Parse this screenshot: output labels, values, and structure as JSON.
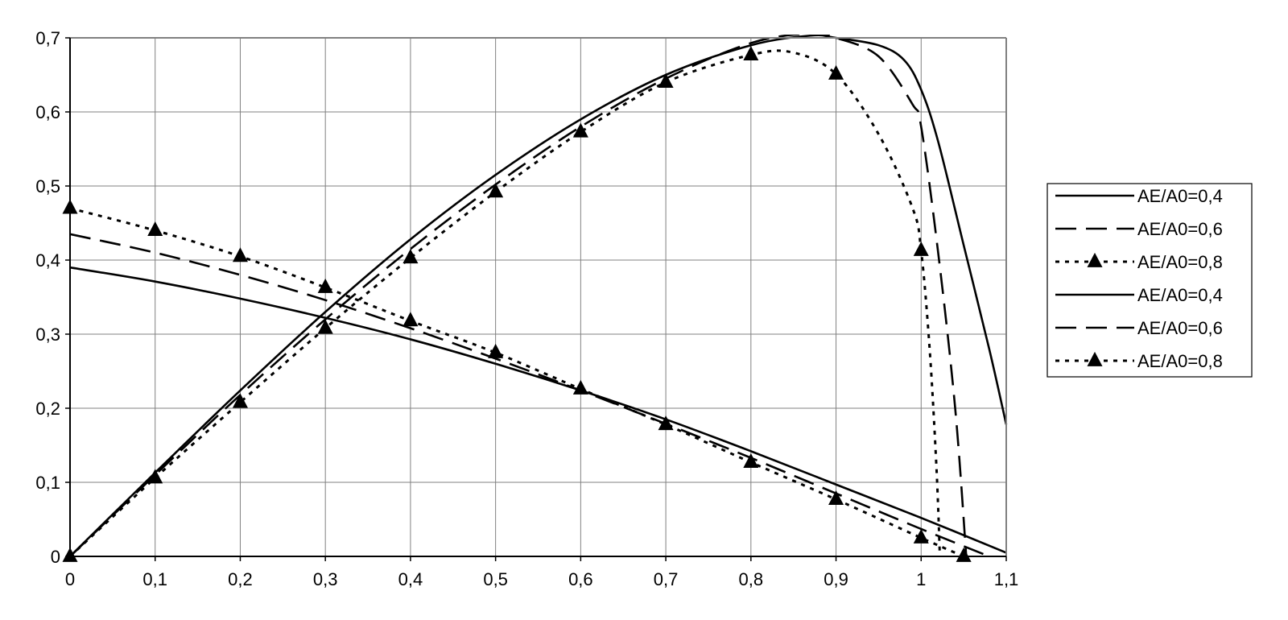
{
  "chart_data": {
    "type": "line",
    "title": "",
    "xlabel": "",
    "ylabel": "",
    "xlim": [
      0,
      1.1
    ],
    "ylim": [
      0,
      0.7
    ],
    "grid": true,
    "legend_position": "right",
    "x_ticks": [
      "0",
      "0,1",
      "0,2",
      "0,3",
      "0,4",
      "0,5",
      "0,6",
      "0,7",
      "0,8",
      "0,9",
      "1",
      "1,1"
    ],
    "y_ticks": [
      "0",
      "0,1",
      "0,2",
      "0,3",
      "0,4",
      "0,5",
      "0,6",
      "0,7"
    ],
    "series": [
      {
        "name": "AE/A0=0,4",
        "style": "solid",
        "marker": "none",
        "points": [
          [
            0,
            0.39
          ],
          [
            0.1,
            0.371
          ],
          [
            0.2,
            0.348
          ],
          [
            0.3,
            0.322
          ],
          [
            0.4,
            0.293
          ],
          [
            0.5,
            0.26
          ],
          [
            0.6,
            0.224
          ],
          [
            0.7,
            0.185
          ],
          [
            0.8,
            0.142
          ],
          [
            0.9,
            0.097
          ],
          [
            1.0,
            0.052
          ],
          [
            1.1,
            0.005
          ]
        ]
      },
      {
        "name": "AE/A0=0,6",
        "style": "dashed",
        "marker": "none",
        "points": [
          [
            0,
            0.435
          ],
          [
            0.1,
            0.41
          ],
          [
            0.2,
            0.38
          ],
          [
            0.3,
            0.346
          ],
          [
            0.4,
            0.308
          ],
          [
            0.5,
            0.267
          ],
          [
            0.6,
            0.224
          ],
          [
            0.7,
            0.179
          ],
          [
            0.8,
            0.133
          ],
          [
            0.9,
            0.085
          ],
          [
            1.0,
            0.037
          ],
          [
            1.08,
            0.0
          ]
        ]
      },
      {
        "name": "AE/A0=0,8",
        "style": "dotted",
        "marker": "triangle",
        "points": [
          [
            0,
            0.47
          ],
          [
            0.1,
            0.44
          ],
          [
            0.2,
            0.405
          ],
          [
            0.3,
            0.363
          ],
          [
            0.4,
            0.318
          ],
          [
            0.5,
            0.275
          ],
          [
            0.6,
            0.226
          ],
          [
            0.7,
            0.178
          ],
          [
            0.8,
            0.127
          ],
          [
            0.9,
            0.077
          ],
          [
            1.0,
            0.025
          ],
          [
            1.05,
            0.0
          ]
        ]
      },
      {
        "name": "AE/A0=0,4",
        "style": "solid",
        "marker": "none",
        "points": [
          [
            0,
            0
          ],
          [
            0.1,
            0.113
          ],
          [
            0.2,
            0.224
          ],
          [
            0.3,
            0.33
          ],
          [
            0.4,
            0.428
          ],
          [
            0.5,
            0.515
          ],
          [
            0.6,
            0.59
          ],
          [
            0.7,
            0.65
          ],
          [
            0.8,
            0.69
          ],
          [
            0.87,
            0.703
          ],
          [
            0.9,
            0.7
          ],
          [
            0.95,
            0.69
          ],
          [
            0.98,
            0.67
          ],
          [
            1.0,
            0.63
          ],
          [
            1.02,
            0.56
          ],
          [
            1.05,
            0.42
          ],
          [
            1.08,
            0.28
          ],
          [
            1.1,
            0.178
          ]
        ]
      },
      {
        "name": "AE/A0=0,6",
        "style": "dashed",
        "marker": "none",
        "points": [
          [
            0,
            0
          ],
          [
            0.1,
            0.11
          ],
          [
            0.2,
            0.218
          ],
          [
            0.3,
            0.32
          ],
          [
            0.4,
            0.415
          ],
          [
            0.5,
            0.502
          ],
          [
            0.6,
            0.58
          ],
          [
            0.7,
            0.645
          ],
          [
            0.8,
            0.693
          ],
          [
            0.87,
            0.706
          ],
          [
            0.9,
            0.7
          ],
          [
            0.95,
            0.675
          ],
          [
            0.99,
            0.61
          ],
          [
            1.0,
            0.58
          ],
          [
            1.02,
            0.41
          ],
          [
            1.04,
            0.2
          ],
          [
            1.053,
            0.0
          ]
        ]
      },
      {
        "name": "AE/A0=0,8",
        "style": "dotted",
        "marker": "triangle",
        "points": [
          [
            0,
            0
          ],
          [
            0.1,
            0.106
          ],
          [
            0.2,
            0.208
          ],
          [
            0.3,
            0.308
          ],
          [
            0.4,
            0.403
          ],
          [
            0.5,
            0.492
          ],
          [
            0.6,
            0.573
          ],
          [
            0.7,
            0.64
          ],
          [
            0.8,
            0.677
          ],
          [
            0.85,
            0.68
          ],
          [
            0.9,
            0.651
          ],
          [
            0.95,
            0.57
          ],
          [
            0.99,
            0.47
          ],
          [
            1.0,
            0.413
          ],
          [
            1.01,
            0.28
          ],
          [
            1.018,
            0.12
          ],
          [
            1.022,
            0.0
          ]
        ],
        "marker_points": [
          [
            0,
            0
          ],
          [
            0.1,
            0.106
          ],
          [
            0.2,
            0.208
          ],
          [
            0.3,
            0.308
          ],
          [
            0.4,
            0.403
          ],
          [
            0.5,
            0.492
          ],
          [
            0.6,
            0.573
          ],
          [
            0.7,
            0.64
          ],
          [
            0.8,
            0.677
          ],
          [
            0.9,
            0.651
          ],
          [
            1.0,
            0.413
          ]
        ]
      }
    ]
  },
  "colors": {
    "line": "#000000",
    "grid": "#808080",
    "frame": "#808080",
    "background": "#ffffff"
  }
}
